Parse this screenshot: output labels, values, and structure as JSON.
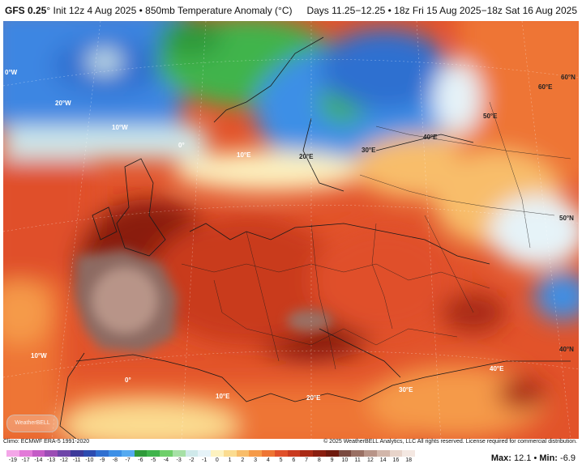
{
  "header": {
    "model": "GFS 0.25",
    "model_degree": "°",
    "init": "Init 12z 4 Aug 2025",
    "field": "850mb Temperature Anomaly (°C)",
    "bullet": "•",
    "valid": "Days 11.25−12.25 • 18z Fri 15 Aug 2025−18z Sat 16 Aug 2025"
  },
  "map_labels": [
    {
      "text": "0°W"
    },
    {
      "text": "20°W"
    },
    {
      "text": "10°W"
    },
    {
      "text": "0°"
    },
    {
      "text": "10°E"
    },
    {
      "text": "20°E"
    },
    {
      "text": "30°E"
    },
    {
      "text": "40°E"
    },
    {
      "text": "50°E"
    },
    {
      "text": "60°E"
    },
    {
      "text": "60°N"
    },
    {
      "text": "50°N"
    },
    {
      "text": "40°N"
    },
    {
      "text": "10°W"
    },
    {
      "text": "0°"
    },
    {
      "text": "10°E"
    },
    {
      "text": "20°E"
    },
    {
      "text": "30°E"
    },
    {
      "text": "40°E"
    }
  ],
  "footer": {
    "climo": "Climo: ECMWF ERA-5 1991-2020",
    "copyright": "© 2025 WeatherBELL Analytics, LLC All rights reserved. License required for commercial distribution.",
    "max_label": "Max:",
    "max_value": "12.1",
    "min_label": "Min:",
    "min_value": "-6.9",
    "sep": "•",
    "logo": "WeatherBELL"
  },
  "colorbar": {
    "ticks": [
      "-19",
      "-17",
      "-14",
      "-13",
      "-12",
      "-11",
      "-10",
      "-9",
      "-8",
      "-7",
      "-6",
      "-5",
      "-4",
      "-3",
      "-2",
      "-1",
      "0",
      "1",
      "2",
      "3",
      "4",
      "5",
      "6",
      "7",
      "8",
      "9",
      "10",
      "11",
      "12",
      "14",
      "16",
      "18"
    ],
    "colors": [
      "#f4a6e8",
      "#e27ad8",
      "#c45bc6",
      "#9b4db4",
      "#6e45a8",
      "#3d3a9a",
      "#2d4cb0",
      "#2f6fd0",
      "#3c8fe6",
      "#55aaf0",
      "#2f9a3a",
      "#3fb44c",
      "#6fcf6a",
      "#a6e0a6",
      "#cfe9ea",
      "#e6f3f8",
      "#fdf2c0",
      "#fbdc90",
      "#f8bd6a",
      "#f59a48",
      "#ee7534",
      "#e0502a",
      "#c93a1f",
      "#a92a15",
      "#8a1f10",
      "#6e1a0e",
      "#7a4a40",
      "#9a7064",
      "#b89488",
      "#d2b6aa",
      "#e8d4ca",
      "#f4e8e2"
    ]
  }
}
